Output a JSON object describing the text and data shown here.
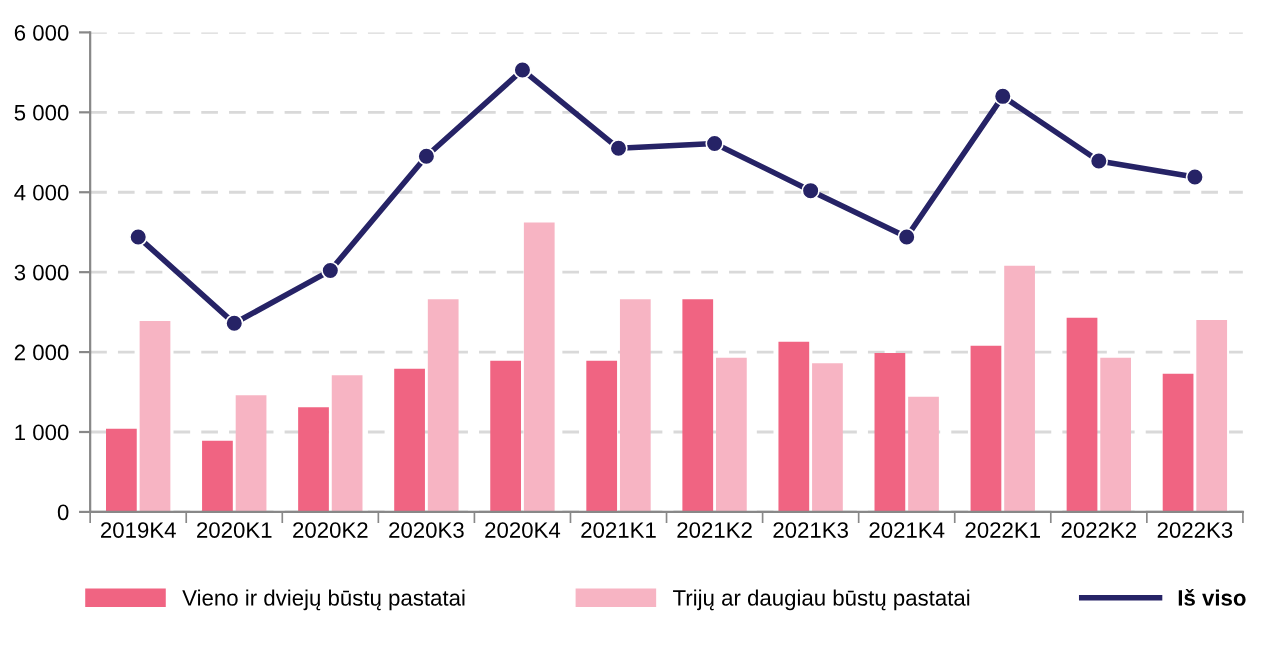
{
  "chart_data": {
    "type": "bar",
    "categories": [
      "2019K4",
      "2020K1",
      "2020K2",
      "2020K3",
      "2020K4",
      "2021K1",
      "2021K2",
      "2021K3",
      "2021K4",
      "2022K1",
      "2022K2",
      "2022K3"
    ],
    "series": [
      {
        "name": "Vieno ir dviejų būstų pastatai",
        "color": "#f06482",
        "values": [
          1040,
          890,
          1310,
          1790,
          1890,
          1890,
          2660,
          2130,
          1990,
          2080,
          2430,
          1730
        ]
      },
      {
        "name": "Trijų ar daugiau būstų pastatai",
        "color": "#f7b4c3",
        "values": [
          2390,
          1460,
          1710,
          2660,
          3620,
          2660,
          1930,
          1860,
          1440,
          3080,
          1930,
          2400
        ]
      },
      {
        "name": "Iš viso",
        "type": "line",
        "color": "#262366",
        "marker": "circle",
        "values": [
          3440,
          2360,
          3020,
          4450,
          5530,
          4550,
          4610,
          4020,
          3440,
          5200,
          4390,
          4190
        ]
      }
    ],
    "ylim": [
      0,
      6000
    ],
    "yticks": [
      0,
      {
        "value": 1000,
        "label": "1 000"
      },
      {
        "value": 2000,
        "label": "2 000"
      },
      {
        "value": 3000,
        "label": "3 000"
      },
      {
        "value": 4000,
        "label": "4 000"
      },
      {
        "value": 5000,
        "label": "5 000"
      },
      {
        "value": 6000,
        "label": "6 000"
      }
    ],
    "grid": "y",
    "legend": "bottom"
  }
}
